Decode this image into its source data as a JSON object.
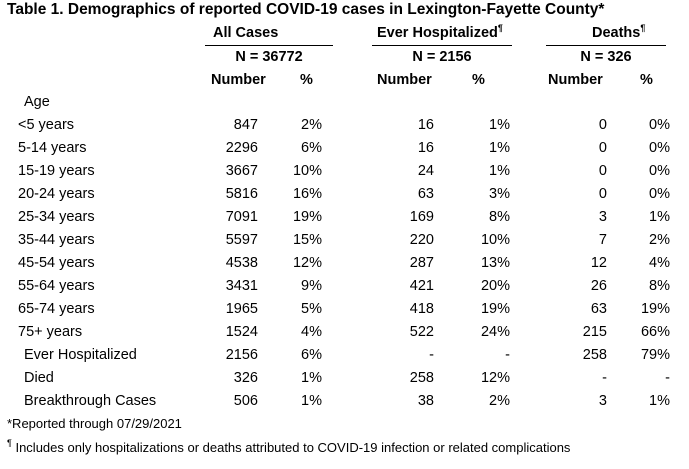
{
  "title": "Table 1. Demographics of reported COVID-19 cases in Lexington-Fayette County*",
  "groups": [
    {
      "label": "All Cases",
      "sup": "",
      "n": "N = 36772"
    },
    {
      "label": "Ever Hospitalized",
      "sup": "¶",
      "n": "N = 2156"
    },
    {
      "label": "Deaths",
      "sup": "¶",
      "n": "N = 326"
    }
  ],
  "subheaders": {
    "number": "Number",
    "percent": "%"
  },
  "section_label": "Age",
  "rows": [
    {
      "label": "<5 years",
      "indent": true,
      "cells": [
        "847",
        "2%",
        "16",
        "1%",
        "0",
        "0%"
      ]
    },
    {
      "label": "5-14 years",
      "indent": true,
      "cells": [
        "2296",
        "6%",
        "16",
        "1%",
        "0",
        "0%"
      ]
    },
    {
      "label": "15-19 years",
      "indent": true,
      "cells": [
        "3667",
        "10%",
        "24",
        "1%",
        "0",
        "0%"
      ]
    },
    {
      "label": "20-24 years",
      "indent": true,
      "cells": [
        "5816",
        "16%",
        "63",
        "3%",
        "0",
        "0%"
      ]
    },
    {
      "label": "25-34 years",
      "indent": true,
      "cells": [
        "7091",
        "19%",
        "169",
        "8%",
        "3",
        "1%"
      ]
    },
    {
      "label": "35-44 years",
      "indent": true,
      "cells": [
        "5597",
        "15%",
        "220",
        "10%",
        "7",
        "2%"
      ]
    },
    {
      "label": "45-54 years",
      "indent": true,
      "cells": [
        "4538",
        "12%",
        "287",
        "13%",
        "12",
        "4%"
      ]
    },
    {
      "label": "55-64 years",
      "indent": true,
      "cells": [
        "3431",
        "9%",
        "421",
        "20%",
        "26",
        "8%"
      ]
    },
    {
      "label": "65-74 years",
      "indent": true,
      "cells": [
        "1965",
        "5%",
        "418",
        "19%",
        "63",
        "19%"
      ]
    },
    {
      "label": "75+ years",
      "indent": true,
      "cells": [
        "1524",
        "4%",
        "522",
        "24%",
        "215",
        "66%"
      ]
    },
    {
      "label": "Ever Hospitalized",
      "indent": false,
      "cells": [
        "2156",
        "6%",
        "-",
        "-",
        "258",
        "79%"
      ]
    },
    {
      "label": "Died",
      "indent": false,
      "cells": [
        "326",
        "1%",
        "258",
        "12%",
        "-",
        "-"
      ]
    },
    {
      "label": "Breakthrough Cases",
      "indent": false,
      "cells": [
        "506",
        "1%",
        "38",
        "2%",
        "3",
        "1%"
      ]
    }
  ],
  "footnotes": [
    "*Reported through 07/29/2021",
    "Includes only hospitalizations or deaths attributed to COVID-19 infection or related complications"
  ],
  "footnote_mark": "¶"
}
